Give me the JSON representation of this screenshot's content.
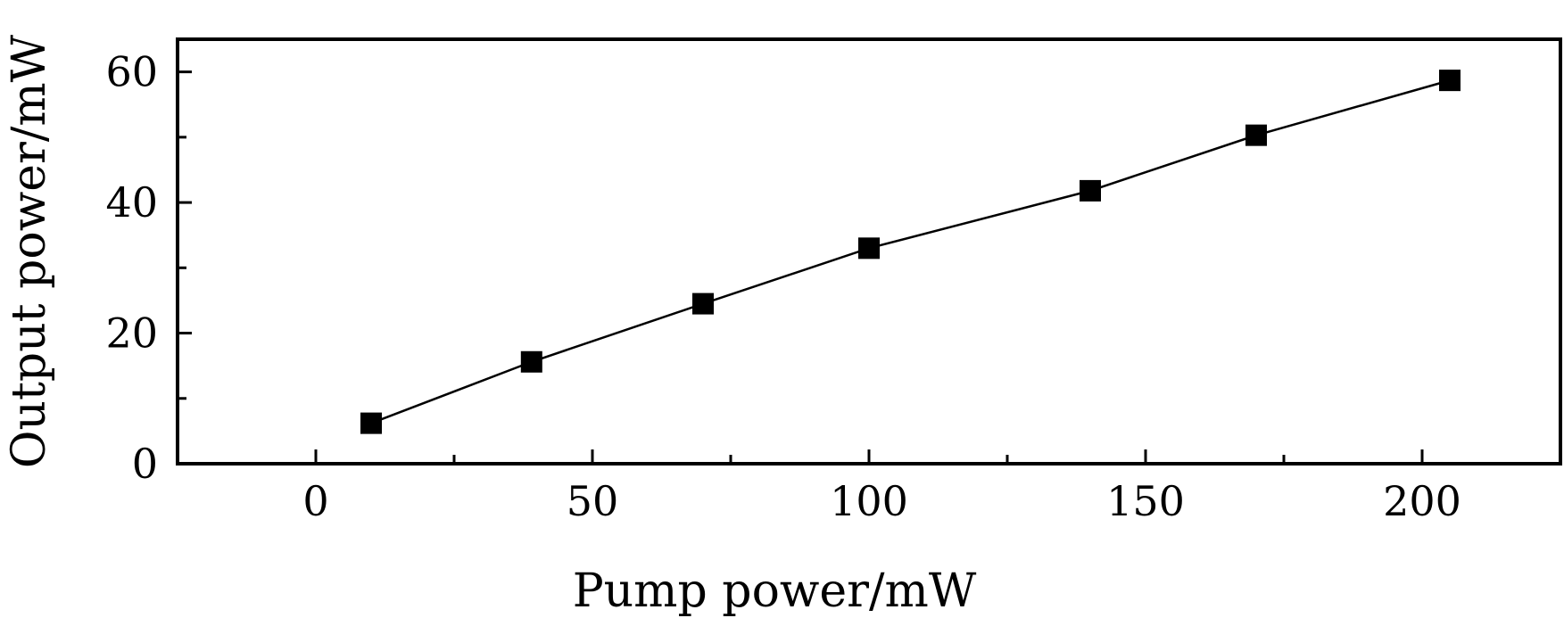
{
  "chart_data": {
    "type": "scatter",
    "xlabel": "Pump power/mW",
    "ylabel": "Output power/mW",
    "xlim": [
      -25,
      225
    ],
    "ylim": [
      0,
      65
    ],
    "x_ticks": [
      0,
      50,
      100,
      150,
      200
    ],
    "y_ticks": [
      0,
      20,
      40,
      60
    ],
    "x_minor_ticks": [
      25,
      75,
      125,
      175
    ],
    "y_minor_ticks": [
      10,
      30,
      50
    ],
    "grid": false,
    "series": [
      {
        "marker": "square",
        "line": true,
        "color": "#000000",
        "points": [
          {
            "x": 10,
            "y": 6.2
          },
          {
            "x": 39,
            "y": 15.6
          },
          {
            "x": 70,
            "y": 24.5
          },
          {
            "x": 100,
            "y": 33.0
          },
          {
            "x": 140,
            "y": 41.8
          },
          {
            "x": 170,
            "y": 50.3
          },
          {
            "x": 205,
            "y": 58.7
          }
        ]
      }
    ]
  }
}
